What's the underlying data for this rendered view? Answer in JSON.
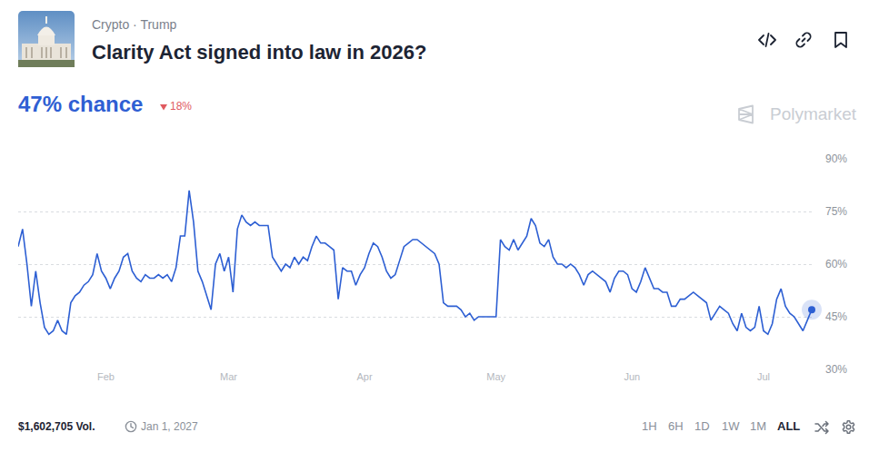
{
  "header": {
    "category": "Crypto · Trump",
    "title": "Clarity Act signed into law in 2026?",
    "chance": "47% chance",
    "change": "18%",
    "brand": "Polymarket"
  },
  "chart_data": {
    "type": "line",
    "categories": [
      null,
      null,
      null,
      null,
      null,
      null,
      null,
      null,
      null,
      null,
      null,
      null,
      null,
      null,
      null,
      null,
      null,
      null,
      null,
      null,
      "Feb",
      null,
      null,
      null,
      null,
      null,
      null,
      null,
      null,
      null,
      null,
      null,
      null,
      null,
      null,
      null,
      null,
      null,
      null,
      null,
      null,
      null,
      null,
      null,
      null,
      null,
      null,
      null,
      "Mar",
      null,
      null,
      null,
      null,
      null,
      null,
      null,
      null,
      null,
      null,
      null,
      null,
      null,
      null,
      null,
      null,
      null,
      null,
      null,
      null,
      null,
      null,
      null,
      null,
      null,
      null,
      null,
      null,
      null,
      null,
      "Apr",
      null,
      null,
      null,
      null,
      null,
      null,
      null,
      null,
      null,
      null,
      null,
      null,
      null,
      null,
      null,
      null,
      null,
      null,
      null,
      null,
      null,
      null,
      null,
      null,
      null,
      null,
      null,
      null,
      null,
      "May",
      null,
      null,
      null,
      null,
      null,
      null,
      null,
      null,
      null,
      null,
      null,
      null,
      null,
      null,
      null,
      null,
      null,
      null,
      null,
      null,
      null,
      null,
      null,
      null,
      null,
      null,
      null,
      null,
      null,
      null,
      "Jun",
      null,
      null,
      null,
      null,
      null,
      null,
      null,
      null,
      null,
      null,
      null,
      null,
      null,
      null,
      null,
      null,
      null,
      null,
      null,
      null,
      null,
      null,
      null,
      null,
      null,
      null,
      null,
      null,
      null,
      "Jul",
      null,
      null,
      null,
      null,
      null,
      null,
      null,
      null,
      null,
      null,
      null
    ],
    "values": [
      65,
      70,
      60,
      48,
      58,
      49,
      42,
      40,
      41,
      44,
      41,
      40,
      49,
      51,
      52,
      54,
      55,
      57,
      63,
      58,
      56,
      53,
      56,
      58,
      62,
      63,
      58,
      56,
      55,
      57,
      56,
      56,
      57,
      56,
      57,
      55,
      59,
      68,
      68,
      81,
      72,
      58,
      55,
      51,
      47,
      60,
      63,
      58,
      62,
      52,
      70,
      74,
      72,
      71,
      72,
      71,
      71,
      71,
      62,
      60,
      58,
      60,
      59,
      62,
      60,
      62,
      61,
      65,
      68,
      66,
      66,
      65,
      64,
      50,
      59,
      58,
      58,
      54,
      57,
      59,
      63,
      66,
      65,
      62,
      58,
      56,
      57,
      61,
      65,
      66,
      67,
      67,
      66,
      65,
      64,
      63,
      60,
      49,
      48,
      48,
      48,
      47,
      45,
      46,
      44,
      45,
      45,
      45,
      45,
      45,
      67,
      65,
      64,
      67,
      64,
      66,
      68,
      73,
      71,
      66,
      65,
      67,
      62,
      60,
      60,
      59,
      60,
      59,
      57,
      54,
      57,
      58,
      57,
      56,
      55,
      52,
      56,
      58,
      58,
      57,
      53,
      52,
      55,
      59,
      56,
      53,
      53,
      52,
      52,
      48,
      48,
      50,
      50,
      51,
      52,
      51,
      50,
      49,
      44,
      46,
      48,
      47,
      46,
      43,
      41,
      46,
      42,
      41,
      42,
      48,
      41,
      40,
      43,
      50,
      53,
      48,
      46,
      45,
      43,
      41,
      44,
      47
    ],
    "color": "#2d5fd3",
    "ylim": [
      30,
      90
    ],
    "yticks": [
      {
        "value": 30,
        "label": "30%"
      },
      {
        "value": 45,
        "label": "45%"
      },
      {
        "value": 60,
        "label": "60%"
      },
      {
        "value": 75,
        "label": "75%"
      },
      {
        "value": 90,
        "label": "90%"
      }
    ],
    "grid": true
  },
  "footer": {
    "volume": "$1,602,705 Vol.",
    "end_date": "Jan 1, 2027",
    "ranges": [
      "1H",
      "6H",
      "1D",
      "1W",
      "1M",
      "ALL"
    ],
    "selected_range": "ALL"
  }
}
